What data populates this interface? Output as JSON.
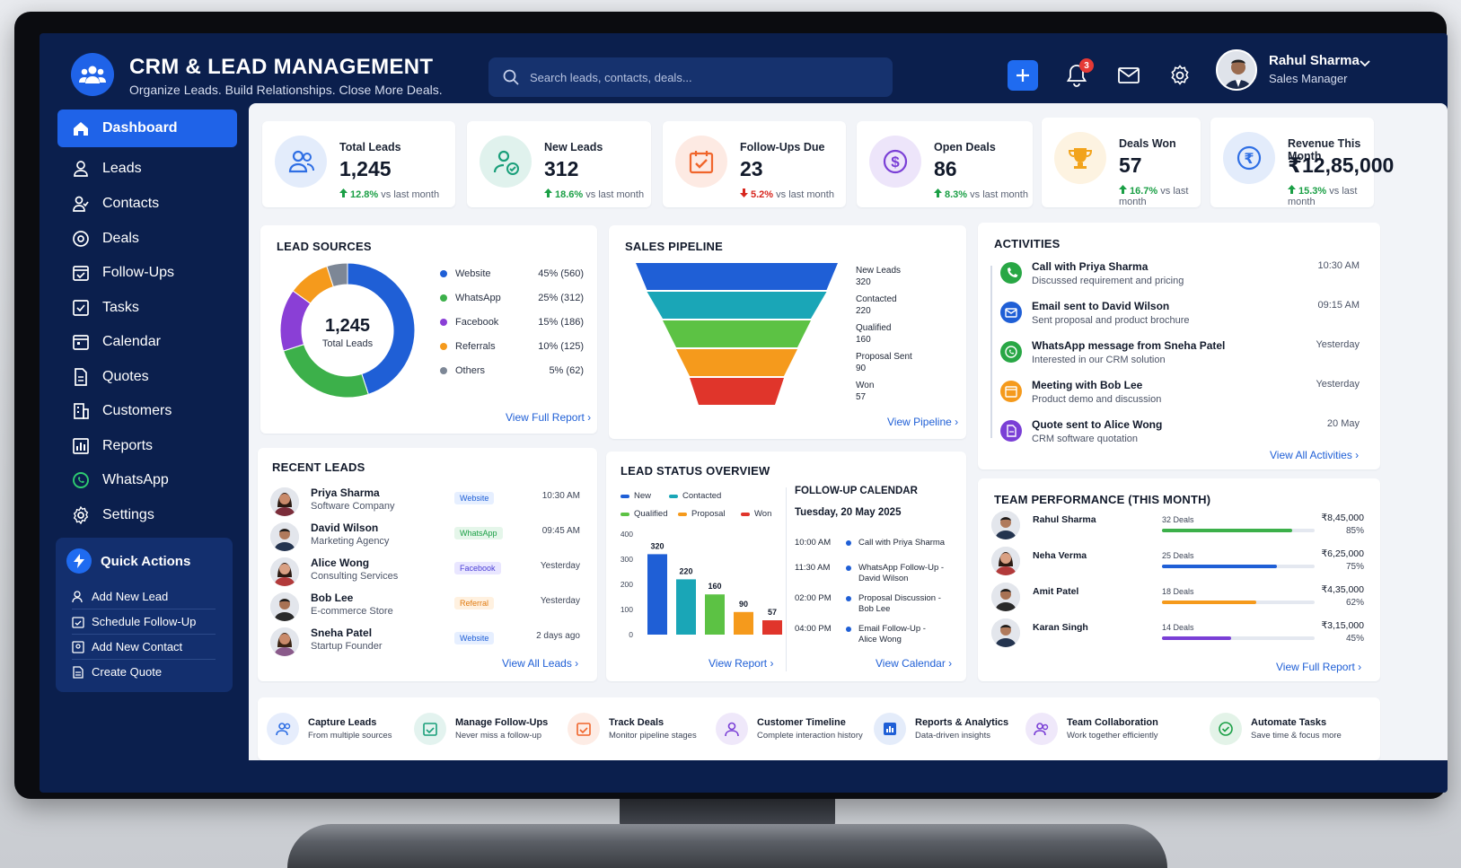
{
  "header": {
    "title": "CRM & LEAD MANAGEMENT",
    "subtitle": "Organize Leads. Build Relationships. Close More Deals.",
    "search_placeholder": "Search leads, contacts, deals...",
    "notification_count": "3",
    "user_name": "Rahul Sharma",
    "user_role": "Sales Manager"
  },
  "sidebar": {
    "items": [
      {
        "label": "Dashboard",
        "icon": "home-icon"
      },
      {
        "label": "Leads",
        "icon": "user-icon"
      },
      {
        "label": "Contacts",
        "icon": "contacts-icon"
      },
      {
        "label": "Deals",
        "icon": "target-icon"
      },
      {
        "label": "Follow-Ups",
        "icon": "calendar-check-icon"
      },
      {
        "label": "Tasks",
        "icon": "checkbox-icon"
      },
      {
        "label": "Calendar",
        "icon": "calendar-icon"
      },
      {
        "label": "Quotes",
        "icon": "document-icon"
      },
      {
        "label": "Customers",
        "icon": "building-icon"
      },
      {
        "label": "Reports",
        "icon": "bar-chart-icon"
      },
      {
        "label": "WhatsApp",
        "icon": "whatsapp-icon"
      },
      {
        "label": "Settings",
        "icon": "gear-icon"
      }
    ],
    "quick_actions": {
      "title": "Quick Actions",
      "items": [
        "Add New Lead",
        "Schedule Follow-Up",
        "Add New Contact",
        "Create Quote"
      ]
    }
  },
  "kpis": [
    {
      "label": "Total Leads",
      "value": "1,245",
      "change": "12.8%",
      "suffix": "vs last month",
      "trend": "up",
      "color": "#2f6fe4"
    },
    {
      "label": "New Leads",
      "value": "312",
      "change": "18.6%",
      "suffix": "vs last month",
      "trend": "up",
      "color": "#1a9f7a"
    },
    {
      "label": "Follow-Ups Due",
      "value": "23",
      "change": "5.2%",
      "suffix": "vs last month",
      "trend": "down",
      "color": "#f0652b"
    },
    {
      "label": "Open Deals",
      "value": "86",
      "change": "8.3%",
      "suffix": "vs last month",
      "trend": "up",
      "color": "#7a3fd6"
    },
    {
      "label": "Deals Won",
      "value": "57",
      "change": "16.7%",
      "suffix": "vs last month",
      "trend": "up",
      "color": "#f2a31b"
    },
    {
      "label": "Revenue This Month",
      "value": "₹12,85,000",
      "change": "15.3%",
      "suffix": "vs last month",
      "trend": "up",
      "color": "#2f6fe4"
    }
  ],
  "lead_sources": {
    "title": "LEAD SOURCES",
    "center_value": "1,245",
    "center_label": "Total Leads",
    "link": "View Full Report",
    "chart_data": {
      "type": "pie",
      "categories": [
        "Website",
        "WhatsApp",
        "Facebook",
        "Referrals",
        "Others"
      ],
      "values": [
        560,
        312,
        186,
        125,
        62
      ],
      "percents": [
        "45%",
        "25%",
        "15%",
        "10%",
        "5%"
      ],
      "colors": [
        "#1f5fd6",
        "#3cb04a",
        "#8a3fd6",
        "#f59a1c",
        "#7d8796"
      ]
    }
  },
  "pipeline": {
    "title": "SALES PIPELINE",
    "link": "View Pipeline",
    "stages": [
      {
        "name": "New Leads",
        "value": "320",
        "color": "#1f5fd6"
      },
      {
        "name": "Contacted",
        "value": "220",
        "color": "#1aa6b7"
      },
      {
        "name": "Qualified",
        "value": "160",
        "color": "#5cc244"
      },
      {
        "name": "Proposal Sent",
        "value": "90",
        "color": "#f59a1c"
      },
      {
        "name": "Won",
        "value": "57",
        "color": "#e0352b"
      }
    ]
  },
  "activities": {
    "title": "ACTIVITIES",
    "link": "View All Activities",
    "items": [
      {
        "title": "Call with Priya Sharma",
        "sub": "Discussed requirement and pricing",
        "time": "10:30 AM",
        "color": "#28a745",
        "icon": "phone-icon"
      },
      {
        "title": "Email sent to David Wilson",
        "sub": "Sent proposal and product brochure",
        "time": "09:15 AM",
        "color": "#1f5fd6",
        "icon": "mail-icon"
      },
      {
        "title": "WhatsApp message from Sneha Patel",
        "sub": "Interested in our CRM solution",
        "time": "Yesterday",
        "color": "#28a745",
        "icon": "whatsapp-icon"
      },
      {
        "title": "Meeting with Bob Lee",
        "sub": "Product demo and discussion",
        "time": "Yesterday",
        "color": "#f59a1c",
        "icon": "calendar-icon"
      },
      {
        "title": "Quote sent to Alice Wong",
        "sub": "CRM software quotation",
        "time": "20 May",
        "color": "#7a3fd6",
        "icon": "document-icon"
      }
    ]
  },
  "recent_leads": {
    "title": "RECENT LEADS",
    "link": "View All Leads",
    "rows": [
      {
        "name": "Priya Sharma",
        "company": "Software Company",
        "source": "Website",
        "time": "10:30 AM"
      },
      {
        "name": "David Wilson",
        "company": "Marketing Agency",
        "source": "WhatsApp",
        "time": "09:45 AM"
      },
      {
        "name": "Alice Wong",
        "company": "Consulting Services",
        "source": "Facebook",
        "time": "Yesterday"
      },
      {
        "name": "Bob Lee",
        "company": "E-commerce Store",
        "source": "Referral",
        "time": "Yesterday"
      },
      {
        "name": "Sneha Patel",
        "company": "Startup Founder",
        "source": "Website",
        "time": "2 days ago"
      }
    ]
  },
  "lead_status": {
    "title": "LEAD STATUS OVERVIEW",
    "link": "View Report",
    "chart_data": {
      "type": "bar",
      "categories": [
        "New",
        "Contacted",
        "Qualified",
        "Proposal",
        "Won"
      ],
      "values": [
        320,
        220,
        160,
        90,
        57
      ],
      "colors": [
        "#1f5fd6",
        "#1aa6b7",
        "#5cc244",
        "#f59a1c",
        "#e0352b"
      ],
      "ylim": [
        0,
        400
      ],
      "yticks": [
        "400",
        "300",
        "200",
        "100",
        "0"
      ]
    }
  },
  "followup_calendar": {
    "title": "FOLLOW-UP CALENDAR",
    "date": "Tuesday, 20 May 2025",
    "link": "View Calendar",
    "events": [
      {
        "time": "10:00 AM",
        "line1": "Call with Priya Sharma",
        "line2": ""
      },
      {
        "time": "11:30 AM",
        "line1": "WhatsApp Follow-Up -",
        "line2": "David Wilson"
      },
      {
        "time": "02:00 PM",
        "line1": "Proposal Discussion -",
        "line2": "Bob Lee"
      },
      {
        "time": "04:00 PM",
        "line1": "Email Follow-Up -",
        "line2": "Alice Wong"
      }
    ]
  },
  "team": {
    "title": "TEAM PERFORMANCE (THIS MONTH)",
    "link": "View Full Report",
    "members": [
      {
        "name": "Rahul Sharma",
        "deals": "32 Deals",
        "amount": "₹8,45,000",
        "percent": "85%",
        "fill": 0.85,
        "color": "#3cb04a"
      },
      {
        "name": "Neha Verma",
        "deals": "25 Deals",
        "amount": "₹6,25,000",
        "percent": "75%",
        "fill": 0.75,
        "color": "#1f5fd6"
      },
      {
        "name": "Amit Patel",
        "deals": "18 Deals",
        "amount": "₹4,35,000",
        "percent": "62%",
        "fill": 0.62,
        "color": "#f59a1c"
      },
      {
        "name": "Karan Singh",
        "deals": "14 Deals",
        "amount": "₹3,15,000",
        "percent": "45%",
        "fill": 0.45,
        "color": "#7a3fd6"
      }
    ]
  },
  "features": [
    {
      "title": "Capture Leads",
      "sub": "From multiple sources",
      "color": "#2f6fe4"
    },
    {
      "title": "Manage Follow-Ups",
      "sub": "Never miss a follow-up",
      "color": "#1a9f7a"
    },
    {
      "title": "Track Deals",
      "sub": "Monitor pipeline stages",
      "color": "#f0652b"
    },
    {
      "title": "Customer Timeline",
      "sub": "Complete interaction history",
      "color": "#7a3fd6"
    },
    {
      "title": "Reports & Analytics",
      "sub": "Data-driven insights",
      "color": "#1f5fd6"
    },
    {
      "title": "Team Collaboration",
      "sub": "Work together efficiently",
      "color": "#7a3fd6"
    },
    {
      "title": "Automate Tasks",
      "sub": "Save time & focus more",
      "color": "#1a9f45"
    }
  ]
}
